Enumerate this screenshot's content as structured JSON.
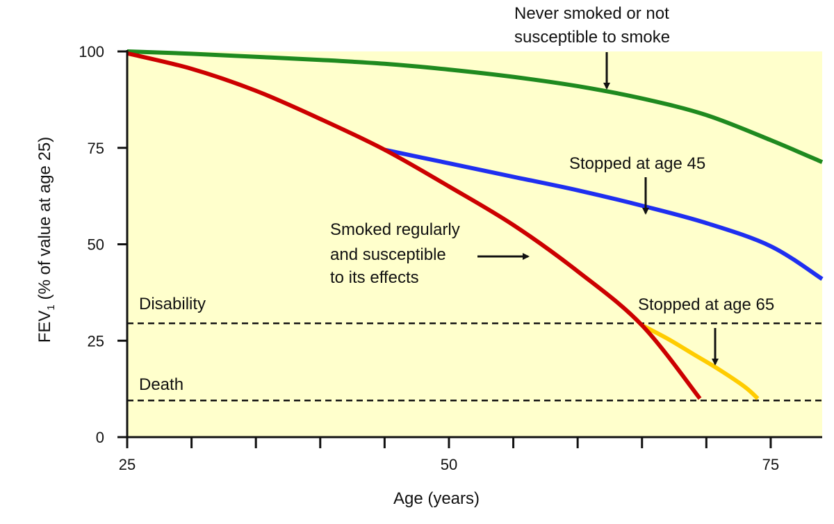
{
  "chart_data": {
    "type": "line",
    "xlabel": "Age (years)",
    "ylabel_main": "FEV",
    "ylabel_sub": "1",
    "ylabel_rest": " (% of value at age 25)",
    "xlim": [
      25,
      79
    ],
    "ylim": [
      0,
      100
    ],
    "xticks": [
      25,
      50,
      75
    ],
    "xminor": [
      30,
      35,
      40,
      45,
      55,
      60,
      65,
      70
    ],
    "yticks": [
      0,
      25,
      50,
      75,
      100
    ],
    "colors": {
      "background": "#ffffcc",
      "never": "#1f8a1f",
      "stopped45": "#1f2ff0",
      "smoked": "#cc0000",
      "stopped65": "#ffcc00",
      "axis": "#111111"
    },
    "thresholds": [
      {
        "name": "Disability",
        "value": 29.5
      },
      {
        "name": "Death",
        "value": 9.5
      }
    ],
    "series": [
      {
        "name": "Never smoked or not susceptible to smoke",
        "key": "never",
        "x": [
          25,
          30,
          35,
          40,
          45,
          50,
          55,
          60,
          65,
          70,
          75,
          79
        ],
        "y": [
          100,
          99.4,
          98.6,
          97.8,
          96.8,
          95.3,
          93.4,
          91.0,
          87.8,
          83.5,
          77.0,
          71.3
        ]
      },
      {
        "name": "Stopped at age 45",
        "key": "stopped45",
        "x": [
          45,
          50,
          55,
          60,
          65,
          70,
          75,
          79
        ],
        "y": [
          74.5,
          71.0,
          67.5,
          64.0,
          60.0,
          55.5,
          49.5,
          41.0
        ]
      },
      {
        "name": "Smoked regularly and susceptible to its effects",
        "key": "smoked",
        "x": [
          25,
          30,
          35,
          40,
          45,
          50,
          55,
          60,
          65,
          69.5
        ],
        "y": [
          99.5,
          95.5,
          89.8,
          82.5,
          74.5,
          65.0,
          55.0,
          43.0,
          29.0,
          10.0
        ]
      },
      {
        "name": "Stopped at age 65",
        "key": "stopped65",
        "x": [
          65,
          67,
          69,
          71,
          73,
          74
        ],
        "y": [
          29.0,
          25.5,
          21.5,
          17.5,
          13.0,
          10.0
        ]
      }
    ],
    "annotations": {
      "never_line1": "Never smoked or not",
      "never_line2": "susceptible to smoke",
      "stopped45": "Stopped at age 45",
      "smoked_line1": "Smoked regularly",
      "smoked_line2": "and susceptible",
      "smoked_line3": "to its effects",
      "stopped65": "Stopped at age 65",
      "disability": "Disability",
      "death": "Death"
    }
  }
}
